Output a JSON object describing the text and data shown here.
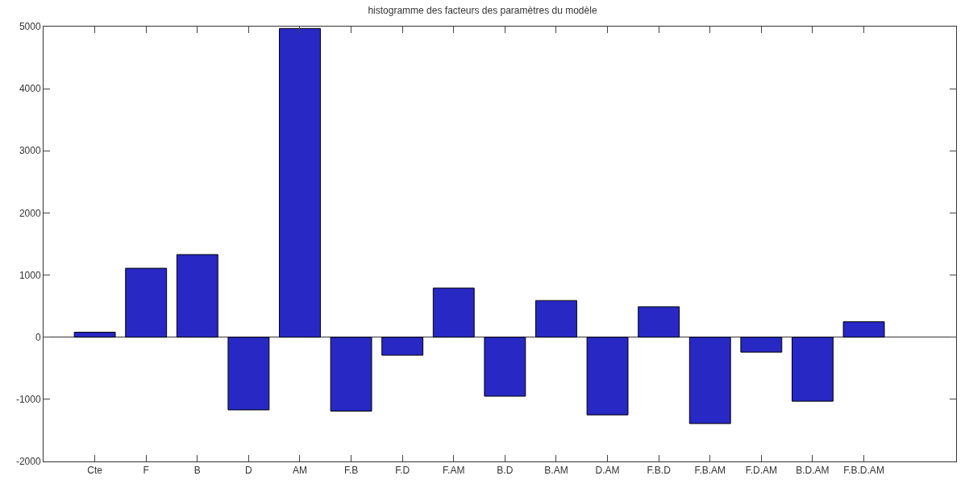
{
  "chart_data": {
    "type": "bar",
    "title": "histogramme des facteurs des paramètres du modèle",
    "categories": [
      "Cte",
      "F",
      "B",
      "D",
      "AM",
      "F.B",
      "F.D",
      "F.AM",
      "B.D",
      "B.AM",
      "D.AM",
      "F.B.D",
      "F.B.AM",
      "F.D.AM",
      "B.D.AM",
      "F.B.D.AM"
    ],
    "values": [
      80,
      1110,
      1330,
      -1170,
      4970,
      -1190,
      -290,
      790,
      -950,
      590,
      -1250,
      490,
      -1390,
      -240,
      -1030,
      250
    ],
    "color": "#2828c4",
    "ylim": [
      -2000,
      5000
    ],
    "yticks": [
      -2000,
      -1000,
      0,
      1000,
      2000,
      3000,
      4000,
      5000
    ]
  }
}
